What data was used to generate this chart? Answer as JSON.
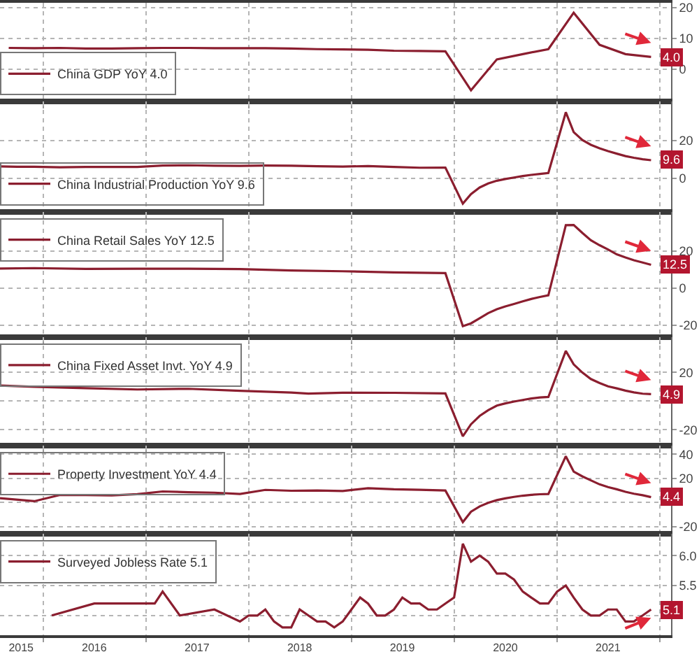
{
  "chart_data": [
    {
      "type": "line",
      "x": [
        "2015-09",
        "2015-12",
        "2016-03",
        "2016-06",
        "2016-09",
        "2016-12",
        "2017-03",
        "2017-06",
        "2017-09",
        "2017-12",
        "2018-03",
        "2018-06",
        "2018-09",
        "2018-12",
        "2019-03",
        "2019-06",
        "2019-09",
        "2019-12",
        "2020-03",
        "2020-06",
        "2020-09",
        "2020-12",
        "2021-03",
        "2021-06",
        "2021-09",
        "2021-12"
      ],
      "series": [
        {
          "name": "China GDP YoY 4.0",
          "color": "#8b1e2f",
          "values": [
            6.9,
            6.8,
            6.9,
            6.7,
            6.7,
            6.8,
            6.9,
            6.9,
            6.8,
            6.8,
            6.8,
            6.7,
            6.5,
            6.4,
            6.3,
            6.0,
            5.9,
            5.8,
            -6.8,
            3.2,
            4.9,
            6.5,
            18.3,
            7.9,
            4.9,
            4.0
          ]
        }
      ],
      "annotations": [
        {
          "text": "4.0",
          "x": "2021-12",
          "y": 4.0
        }
      ],
      "xlim": [
        "2015-08-01",
        "2022-02-10"
      ],
      "xticks": [
        {
          "value": "2016-01-01",
          "label": null
        },
        {
          "value": "2017-01-01",
          "label": null
        },
        {
          "value": "2018-01-01",
          "label": null
        },
        {
          "value": "2019-01-01",
          "label": null
        },
        {
          "value": "2020-01-01",
          "label": null
        },
        {
          "value": "2021-01-01",
          "label": null
        },
        {
          "value": "2022-01-01",
          "label": null
        }
      ],
      "ylim": [
        -10.5,
        21.5
      ],
      "yticks": [
        0,
        10,
        20
      ],
      "grid": true,
      "legend": "bottom left",
      "tick_labels": "y"
    },
    {
      "type": "line",
      "x": [
        "2015-08",
        "2015-10",
        "2015-12",
        "2016-03",
        "2016-06",
        "2016-09",
        "2016-12",
        "2017-03",
        "2017-06",
        "2017-09",
        "2017-12",
        "2018-03",
        "2018-06",
        "2018-09",
        "2018-12",
        "2019-03",
        "2019-06",
        "2019-09",
        "2019-12",
        "2020-02",
        "2020-03",
        "2020-04",
        "2020-05",
        "2020-06",
        "2020-07",
        "2020-08",
        "2020-09",
        "2020-10",
        "2020-11",
        "2020-12",
        "2021-02",
        "2021-03",
        "2021-04",
        "2021-05",
        "2021-06",
        "2021-07",
        "2021-08",
        "2021-09",
        "2021-10",
        "2021-11",
        "2021-12"
      ],
      "series": [
        {
          "name": "China Industrial Production YoY 9.6",
          "color": "#8b1e2f",
          "values": [
            6.3,
            6.1,
            6.1,
            5.8,
            6.0,
            6.0,
            6.0,
            6.8,
            6.9,
            6.7,
            6.6,
            6.8,
            6.7,
            6.4,
            6.2,
            6.5,
            6.0,
            5.6,
            5.7,
            -13.5,
            -8.4,
            -4.9,
            -2.8,
            -1.3,
            -0.4,
            0.4,
            1.2,
            1.8,
            2.3,
            2.8,
            35.1,
            24.5,
            20.3,
            17.8,
            15.9,
            14.4,
            13.1,
            11.8,
            10.9,
            10.1,
            9.6
          ]
        }
      ],
      "annotations": [
        {
          "text": "9.6",
          "x": "2021-12",
          "y": 9.6
        }
      ],
      "xlim": [
        "2015-08-01",
        "2022-02-10"
      ],
      "xticks": [
        {
          "value": "2016-01-01",
          "label": null
        },
        {
          "value": "2017-01-01",
          "label": null
        },
        {
          "value": "2018-01-01",
          "label": null
        },
        {
          "value": "2019-01-01",
          "label": null
        },
        {
          "value": "2020-01-01",
          "label": null
        },
        {
          "value": "2021-01-01",
          "label": null
        },
        {
          "value": "2022-01-01",
          "label": null
        }
      ],
      "ylim": [
        -17.8,
        40.7
      ],
      "yticks": [
        0,
        20
      ],
      "grid": true,
      "legend": "bottom left",
      "tick_labels": "y"
    },
    {
      "type": "line",
      "x": [
        "2015-08",
        "2015-12",
        "2016-06",
        "2016-12",
        "2017-06",
        "2017-12",
        "2018-06",
        "2018-12",
        "2019-06",
        "2019-12",
        "2020-02",
        "2020-03",
        "2020-04",
        "2020-05",
        "2020-06",
        "2020-07",
        "2020-08",
        "2020-09",
        "2020-10",
        "2020-11",
        "2020-12",
        "2021-02",
        "2021-03",
        "2021-04",
        "2021-05",
        "2021-06",
        "2021-07",
        "2021-08",
        "2021-09",
        "2021-10",
        "2021-11",
        "2021-12"
      ],
      "series": [
        {
          "name": "China Retail Sales YoY 12.5",
          "color": "#8b1e2f",
          "values": [
            10.5,
            10.7,
            10.3,
            10.4,
            10.4,
            10.2,
            9.4,
            9.0,
            8.4,
            8.0,
            -20.5,
            -19.0,
            -16.2,
            -13.5,
            -11.4,
            -9.9,
            -8.6,
            -7.2,
            -5.9,
            -4.8,
            -3.9,
            33.8,
            33.9,
            29.6,
            25.7,
            23.0,
            20.7,
            18.1,
            16.4,
            14.9,
            13.7,
            12.5
          ]
        }
      ],
      "annotations": [
        {
          "text": "12.5",
          "x": "2021-12",
          "y": 12.5
        }
      ],
      "xlim": [
        "2015-08-01",
        "2022-02-10"
      ],
      "xticks": [
        {
          "value": "2016-01-01",
          "label": null
        },
        {
          "value": "2017-01-01",
          "label": null
        },
        {
          "value": "2018-01-01",
          "label": null
        },
        {
          "value": "2019-01-01",
          "label": null
        },
        {
          "value": "2020-01-01",
          "label": null
        },
        {
          "value": "2021-01-01",
          "label": null
        },
        {
          "value": "2022-01-01",
          "label": null
        }
      ],
      "ylim": [
        -26.4,
        41
      ],
      "yticks": [
        -20,
        0,
        20
      ],
      "grid": true,
      "legend": "top left",
      "tick_labels": "y"
    },
    {
      "type": "line",
      "x": [
        "2015-08",
        "2015-12",
        "2016-06",
        "2016-12",
        "2017-06",
        "2017-12",
        "2018-06",
        "2018-08",
        "2018-12",
        "2019-06",
        "2019-12",
        "2020-02",
        "2020-03",
        "2020-04",
        "2020-05",
        "2020-06",
        "2020-07",
        "2020-08",
        "2020-09",
        "2020-10",
        "2020-11",
        "2020-12",
        "2021-02",
        "2021-03",
        "2021-04",
        "2021-05",
        "2021-06",
        "2021-07",
        "2021-08",
        "2021-09",
        "2021-10",
        "2021-11",
        "2021-12"
      ],
      "series": [
        {
          "name": "China Fixed Asset Invt. YoY 4.9",
          "color": "#8b1e2f",
          "values": [
            10.9,
            10.0,
            9.0,
            8.1,
            8.6,
            7.2,
            6.0,
            5.3,
            5.9,
            5.8,
            5.4,
            -24.5,
            -16.1,
            -10.3,
            -6.3,
            -3.1,
            -1.6,
            -0.3,
            0.8,
            1.8,
            2.6,
            2.9,
            35.0,
            25.6,
            19.9,
            15.4,
            12.6,
            10.3,
            8.9,
            7.3,
            6.1,
            5.2,
            4.9
          ]
        }
      ],
      "annotations": [
        {
          "text": "4.9",
          "x": "2021-12",
          "y": 4.9
        }
      ],
      "xlim": [
        "2015-08-01",
        "2022-02-10"
      ],
      "xticks": [
        {
          "value": "2016-01-01",
          "label": null
        },
        {
          "value": "2017-01-01",
          "label": null
        },
        {
          "value": "2018-01-01",
          "label": null
        },
        {
          "value": "2019-01-01",
          "label": null
        },
        {
          "value": "2020-01-01",
          "label": null
        },
        {
          "value": "2021-01-01",
          "label": null
        },
        {
          "value": "2022-01-01",
          "label": null
        }
      ],
      "ylim": [
        -31.1,
        44.6
      ],
      "yticks": [
        -20,
        {
          "value": 0,
          "label": null
        },
        20
      ],
      "grid": true,
      "legend": "top left",
      "tick_labels": "y"
    },
    {
      "type": "line",
      "x": [
        "2015-08",
        "2015-12",
        "2016-03",
        "2016-06",
        "2016-09",
        "2016-12",
        "2017-03",
        "2017-06",
        "2017-09",
        "2017-12",
        "2018-03",
        "2018-06",
        "2018-09",
        "2018-12",
        "2019-03",
        "2019-06",
        "2019-09",
        "2019-12",
        "2020-02",
        "2020-03",
        "2020-04",
        "2020-05",
        "2020-06",
        "2020-07",
        "2020-08",
        "2020-09",
        "2020-10",
        "2020-11",
        "2020-12",
        "2021-02",
        "2021-03",
        "2021-04",
        "2021-05",
        "2021-06",
        "2021-07",
        "2021-08",
        "2021-09",
        "2021-10",
        "2021-11",
        "2021-12"
      ],
      "series": [
        {
          "name": "Property Investment YoY 4.4",
          "color": "#8b1e2f",
          "values": [
            3.5,
            1.0,
            6.2,
            6.1,
            5.8,
            6.9,
            9.1,
            8.5,
            8.1,
            7.0,
            10.4,
            9.7,
            9.9,
            9.5,
            11.8,
            10.9,
            10.5,
            9.9,
            -16.3,
            -7.7,
            -3.3,
            -0.3,
            1.9,
            3.4,
            4.6,
            5.6,
            6.3,
            6.8,
            7.0,
            38.3,
            25.6,
            21.6,
            18.3,
            15.0,
            12.7,
            10.9,
            8.8,
            7.2,
            6.0,
            4.4
          ]
        }
      ],
      "annotations": [
        {
          "text": "4.4",
          "x": "2021-12",
          "y": 4.4
        }
      ],
      "xlim": [
        "2015-08-01",
        "2022-02-10"
      ],
      "xticks": [
        {
          "value": "2016-01-01",
          "label": null
        },
        {
          "value": "2017-01-01",
          "label": null
        },
        {
          "value": "2018-01-01",
          "label": null
        },
        {
          "value": "2019-01-01",
          "label": null
        },
        {
          "value": "2020-01-01",
          "label": null
        },
        {
          "value": "2021-01-01",
          "label": null
        },
        {
          "value": "2022-01-01",
          "label": null
        }
      ],
      "ylim": [
        -25.8,
        47
      ],
      "yticks": [
        -20,
        {
          "value": 0,
          "label": null
        },
        20,
        40
      ],
      "grid": true,
      "legend": "top left",
      "tick_labels": "y"
    },
    {
      "type": "line",
      "x": [
        "2016-02",
        "2016-07",
        "2017-02",
        "2017-03",
        "2017-05",
        "2017-09",
        "2017-12",
        "2018-01",
        "2018-02",
        "2018-03",
        "2018-04",
        "2018-05",
        "2018-06",
        "2018-07",
        "2018-08",
        "2018-09",
        "2018-10",
        "2018-11",
        "2018-12",
        "2019-01",
        "2019-02",
        "2019-03",
        "2019-04",
        "2019-05",
        "2019-06",
        "2019-07",
        "2019-08",
        "2019-09",
        "2019-10",
        "2019-11",
        "2019-12",
        "2020-01",
        "2020-02",
        "2020-03",
        "2020-04",
        "2020-05",
        "2020-06",
        "2020-07",
        "2020-08",
        "2020-09",
        "2020-10",
        "2020-11",
        "2020-12",
        "2021-01",
        "2021-02",
        "2021-03",
        "2021-04",
        "2021-05",
        "2021-06",
        "2021-07",
        "2021-08",
        "2021-09",
        "2021-10",
        "2021-11",
        "2021-12"
      ],
      "series": [
        {
          "name": "Surveyed Jobless Rate 5.1",
          "color": "#8b1e2f",
          "values": [
            5.0,
            5.2,
            5.2,
            5.4,
            5.0,
            5.1,
            4.9,
            5.0,
            5.0,
            5.1,
            4.9,
            4.8,
            4.8,
            5.1,
            5.0,
            4.9,
            4.9,
            4.8,
            4.9,
            5.1,
            5.3,
            5.2,
            5.0,
            5.0,
            5.1,
            5.3,
            5.2,
            5.2,
            5.1,
            5.1,
            5.2,
            5.3,
            6.2,
            5.9,
            6.0,
            5.9,
            5.7,
            5.7,
            5.6,
            5.4,
            5.3,
            5.2,
            5.2,
            5.4,
            5.5,
            5.3,
            5.1,
            5.0,
            5.0,
            5.1,
            5.1,
            4.9,
            4.9,
            5.0,
            5.1
          ]
        }
      ],
      "annotations": [
        {
          "text": "5.1",
          "x": "2021-12",
          "y": 5.1
        }
      ],
      "xlim": [
        "2015-08-01",
        "2022-02-10"
      ],
      "xticks": [
        {
          "value": "2015-10-15",
          "label": "2015"
        },
        {
          "value": "2016-01-01",
          "label": null
        },
        {
          "value": "2016-07-01",
          "label": "2016"
        },
        {
          "value": "2017-01-01",
          "label": null
        },
        {
          "value": "2017-07-01",
          "label": "2017"
        },
        {
          "value": "2018-01-01",
          "label": null
        },
        {
          "value": "2018-07-01",
          "label": "2018"
        },
        {
          "value": "2019-01-01",
          "label": null
        },
        {
          "value": "2019-07-01",
          "label": "2019"
        },
        {
          "value": "2020-01-01",
          "label": null
        },
        {
          "value": "2020-07-01",
          "label": "2020"
        },
        {
          "value": "2021-01-01",
          "label": null
        },
        {
          "value": "2021-07-01",
          "label": "2021"
        },
        {
          "value": "2022-01-01",
          "label": null
        }
      ],
      "ylim": [
        4.67,
        6.37
      ],
      "yticks": [
        {
          "value": 5,
          "label": null
        },
        {
          "value": 5.5,
          "label": "5.5"
        },
        {
          "value": 6,
          "label": "6.0"
        }
      ],
      "grid": true,
      "legend": "top left"
    }
  ]
}
